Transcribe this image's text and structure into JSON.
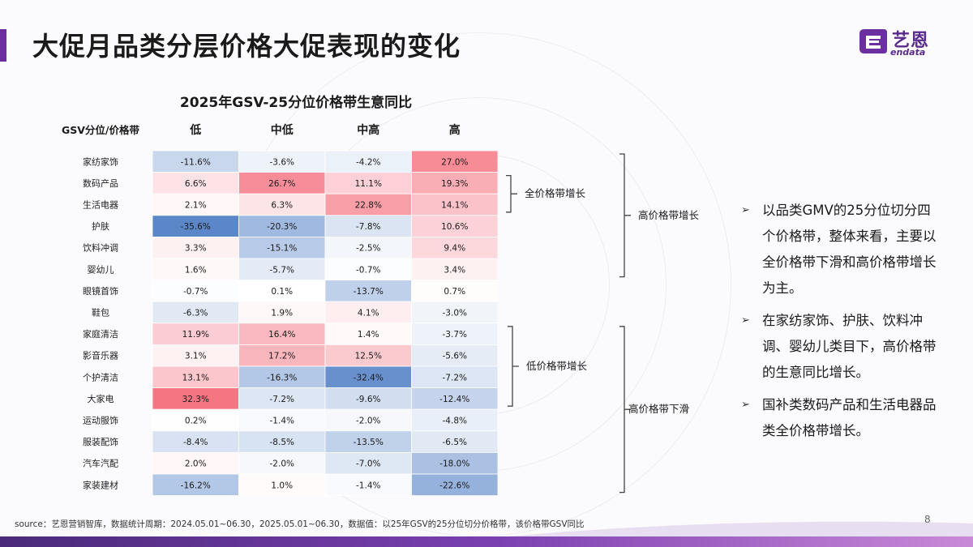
{
  "page": {
    "title": "大促月品类分层价格大促表现的变化",
    "page_number": "8",
    "source": "source：艺恩营销智库，数据统计周期：2024.05.01~06.30，2025.05.01~06.30，数据值：以25年GSV的25分位切分价格带，该价格带GSV同比"
  },
  "logo": {
    "name_cn": "艺恩",
    "name_en": "endata",
    "icon": "endata-logo-icon",
    "color": "#5a2a8c"
  },
  "colors": {
    "accent": "#6b2fa0",
    "positive": "#f46a78",
    "negative": "#5b87c9",
    "neutral": "#ffffff"
  },
  "bullets": [
    "以品类GMV的25分位切分四个价格带，整体来看，主要以全价格带下滑和高价格带增长为主。",
    "在家纺家饰、护肤、饮料冲调、婴幼儿类目下，高价格带的生意同比增长。",
    "国补类数码产品和生活电器品类全价格带增长。"
  ],
  "groups": [
    {
      "label": "全价格带增长",
      "from_row": 1,
      "to_row": 2
    },
    {
      "label": "高价格带增长",
      "from_row": 0,
      "to_row": 5
    },
    {
      "label": "低价格带增长",
      "from_row": 8,
      "to_row": 11
    },
    {
      "label": "高价格带下滑",
      "from_row": 8,
      "to_row": 15
    }
  ],
  "chart_data": {
    "type": "heatmap",
    "title": "2025年GSV-25分位价格带生意同比",
    "corner_label": "GSV分位/价格带",
    "columns": [
      "低",
      "中低",
      "中高",
      "高"
    ],
    "rows": [
      "家纺家饰",
      "数码产品",
      "生活电器",
      "护肤",
      "饮料冲调",
      "婴幼儿",
      "眼镜首饰",
      "鞋包",
      "家庭清洁",
      "影音乐器",
      "个护清洁",
      "大家电",
      "运动服饰",
      "服装配饰",
      "汽车汽配",
      "家装建材"
    ],
    "values": [
      [
        -11.6,
        -3.6,
        -4.2,
        27.0
      ],
      [
        6.6,
        26.7,
        11.1,
        19.3
      ],
      [
        2.1,
        6.3,
        22.8,
        14.1
      ],
      [
        -35.6,
        -20.3,
        -7.8,
        10.6
      ],
      [
        3.3,
        -15.1,
        -2.5,
        9.4
      ],
      [
        1.6,
        -5.7,
        -0.7,
        3.4
      ],
      [
        -0.7,
        0.1,
        -13.7,
        0.7
      ],
      [
        -6.3,
        1.9,
        4.1,
        -3.0
      ],
      [
        11.9,
        16.4,
        1.4,
        -3.7
      ],
      [
        3.1,
        17.2,
        12.5,
        -5.6
      ],
      [
        13.1,
        -16.3,
        -32.4,
        -7.2
      ],
      [
        32.3,
        -7.2,
        -9.6,
        -12.4
      ],
      [
        0.2,
        -1.4,
        -2.0,
        -4.8
      ],
      [
        -8.4,
        -8.5,
        -13.5,
        -6.5
      ],
      [
        2.0,
        -2.0,
        -7.0,
        -18.0
      ],
      [
        -16.2,
        1.0,
        -1.4,
        -22.6
      ]
    ],
    "unit": "%"
  }
}
